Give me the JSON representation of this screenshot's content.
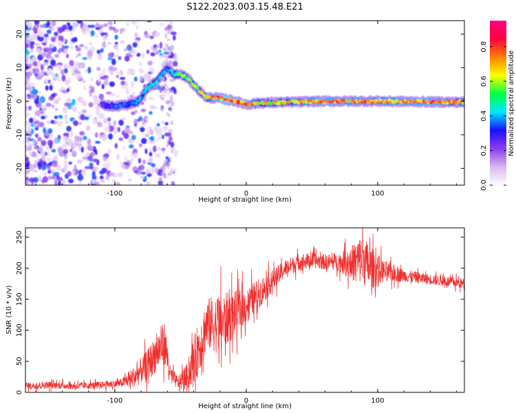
{
  "title": "S122.2023.003.15.48.E21",
  "chart_data": [
    {
      "type": "heatmap",
      "xlabel": "Height of straight line (km)",
      "ylabel": "Frequency (Hz)",
      "xlim": [
        -168,
        166
      ],
      "ylim": [
        -25,
        24
      ],
      "xticks": [
        -100,
        0,
        100
      ],
      "yticks": [
        -20,
        -10,
        0,
        10,
        20
      ],
      "colorbar": {
        "label": "Normalized spectral amplitude",
        "range": [
          0,
          0.95
        ],
        "ticks": [
          0.0,
          0.2,
          0.4,
          0.6,
          0.8
        ],
        "tick_labels": [
          "0.0",
          "0.2",
          "0.4",
          "0.6",
          "0.8"
        ],
        "colormap": [
          "#ffffff",
          "#d7b8f0",
          "#8a3df0",
          "#1a10ff",
          "#00e8ff",
          "#00ff40",
          "#ffff00",
          "#ff8000",
          "#ff0040",
          "#ff0080"
        ]
      },
      "ridge": {
        "x": [
          -110,
          -100,
          -90,
          -82,
          -75,
          -68,
          -60,
          -55,
          -50,
          -45,
          -38,
          -30,
          -22,
          -15,
          -8,
          0,
          10,
          30,
          60,
          100,
          140,
          166
        ],
        "y": [
          -1,
          -1.5,
          -1,
          0,
          4,
          6,
          10,
          8,
          8,
          7,
          4,
          1,
          1,
          0.5,
          0,
          -1,
          -0.5,
          -0.3,
          0,
          0,
          -0.2,
          -0.3
        ],
        "amplitude": [
          0.25,
          0.35,
          0.35,
          0.4,
          0.45,
          0.5,
          0.35,
          0.45,
          0.55,
          0.6,
          0.6,
          0.7,
          0.8,
          0.85,
          0.8,
          0.85,
          0.65,
          0.7,
          0.8,
          0.75,
          0.8,
          0.7
        ]
      }
    },
    {
      "type": "line",
      "xlabel": "Height of straight line (km)",
      "ylabel": "SNR (10 * v/v)",
      "xlim": [
        -168,
        166
      ],
      "ylim": [
        0,
        265
      ],
      "xticks": [
        -100,
        0,
        100
      ],
      "yticks": [
        0,
        50,
        100,
        150,
        200,
        250
      ],
      "color": "#ee3030",
      "series": [
        {
          "x": [
            -168,
            -150,
            -130,
            -110,
            -95,
            -85,
            -75,
            -68,
            -62,
            -58,
            -52,
            -45,
            -38,
            -30,
            -20,
            -10,
            0,
            10,
            20,
            30,
            40,
            50,
            60,
            70,
            80,
            88,
            95,
            105,
            120,
            140,
            166
          ],
          "y": [
            10,
            12,
            10,
            12,
            15,
            25,
            45,
            65,
            80,
            30,
            15,
            25,
            60,
            110,
            110,
            125,
            140,
            160,
            180,
            200,
            210,
            212,
            210,
            210,
            208,
            215,
            200,
            195,
            188,
            182,
            175
          ],
          "noise": [
            8,
            8,
            8,
            8,
            10,
            25,
            35,
            45,
            50,
            20,
            15,
            30,
            60,
            60,
            70,
            55,
            40,
            35,
            25,
            20,
            20,
            18,
            18,
            20,
            40,
            60,
            50,
            25,
            15,
            12,
            12
          ]
        }
      ]
    }
  ]
}
